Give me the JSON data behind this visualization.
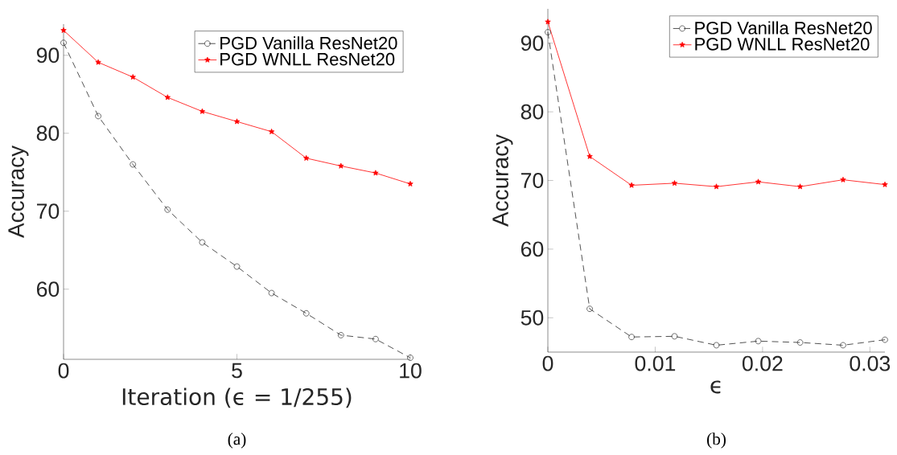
{
  "chart_data": [
    {
      "type": "line",
      "xlabel": "Iteration (ϵ = 1/255)",
      "ylabel": "Accuracy",
      "annotations": [
        "(a)"
      ],
      "x": [
        0,
        1,
        2,
        3,
        4,
        5,
        6,
        7,
        8,
        9,
        10
      ],
      "series": [
        {
          "name": "PGD Vanilla ResNet20",
          "color": "#262626",
          "marker": "circle",
          "line_style": "dashed",
          "values": [
            91.6,
            82.2,
            76.0,
            70.2,
            66.0,
            62.9,
            59.5,
            56.9,
            54.1,
            53.6,
            51.2
          ]
        },
        {
          "name": "PGD WNLL ResNet20",
          "color": "#ff0000",
          "marker": "star",
          "line_style": "solid",
          "values": [
            93.2,
            89.1,
            87.2,
            84.6,
            82.8,
            81.5,
            80.2,
            76.8,
            75.8,
            74.9,
            73.5
          ]
        }
      ],
      "xlim": [
        0,
        10
      ],
      "ylim": [
        51,
        94
      ],
      "xticks": [
        0,
        5,
        10
      ],
      "yticks": [
        60,
        70,
        80,
        90
      ],
      "legend": "top right"
    },
    {
      "type": "line",
      "xlabel": "ϵ",
      "ylabel": "Accuracy",
      "annotations": [
        "(b)"
      ],
      "x": [
        0,
        0.0039,
        0.0078,
        0.0118,
        0.0157,
        0.0196,
        0.0235,
        0.0275,
        0.0314
      ],
      "series": [
        {
          "name": "PGD Vanilla ResNet20",
          "color": "#262626",
          "marker": "circle",
          "line_style": "dashed",
          "values": [
            91.6,
            51.3,
            47.2,
            47.3,
            46.0,
            46.6,
            46.4,
            46.0,
            46.8
          ]
        },
        {
          "name": "PGD WNLL ResNet20",
          "color": "#ff0000",
          "marker": "star",
          "line_style": "solid",
          "values": [
            93.1,
            73.5,
            69.3,
            69.6,
            69.1,
            69.8,
            69.1,
            70.1,
            69.4
          ]
        }
      ],
      "xlim": [
        0,
        0.0314
      ],
      "ylim": [
        45,
        95
      ],
      "xticks": [
        0,
        0.01,
        0.02,
        0.03
      ],
      "yticks": [
        50,
        60,
        70,
        80,
        90
      ],
      "legend": "top right"
    }
  ]
}
